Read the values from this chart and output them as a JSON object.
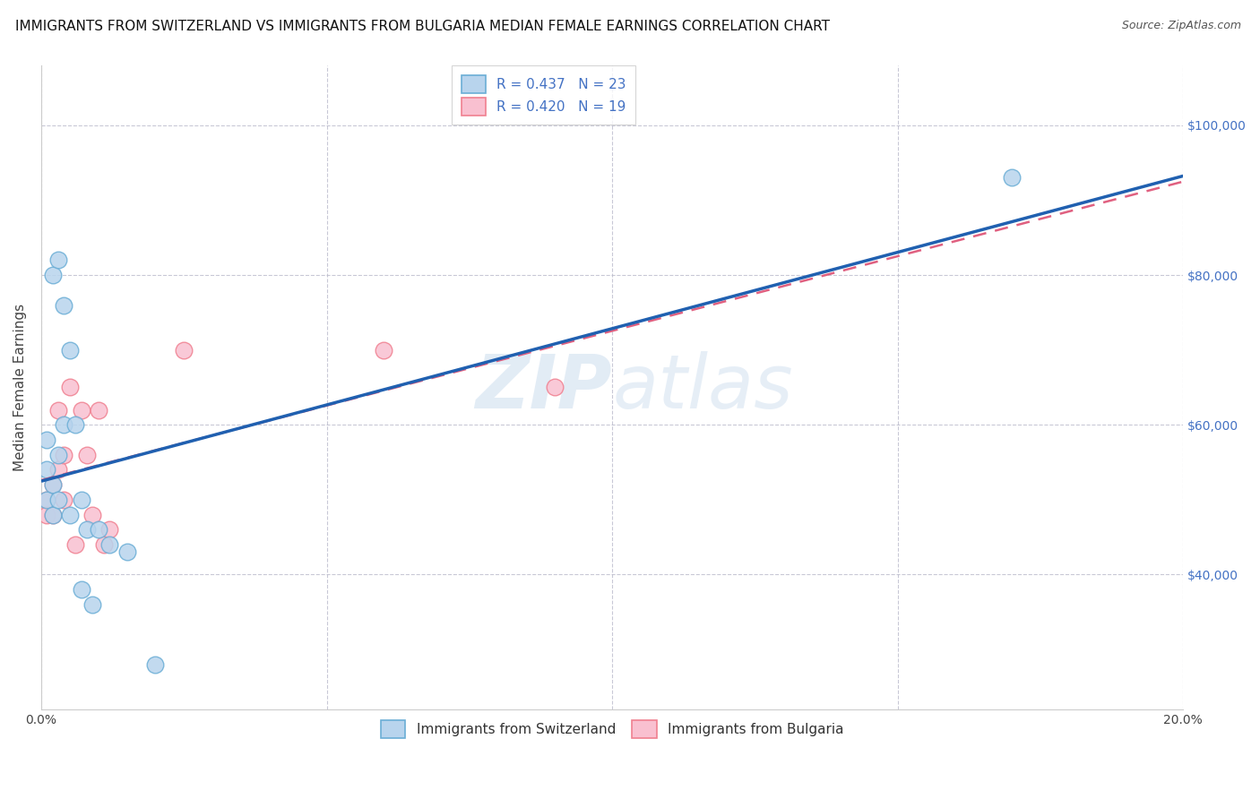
{
  "title": "IMMIGRANTS FROM SWITZERLAND VS IMMIGRANTS FROM BULGARIA MEDIAN FEMALE EARNINGS CORRELATION CHART",
  "source": "Source: ZipAtlas.com",
  "ylabel": "Median Female Earnings",
  "xlim": [
    0.0,
    0.2
  ],
  "ylim": [
    22000,
    108000
  ],
  "x_ticks": [
    0.0,
    0.05,
    0.1,
    0.15,
    0.2
  ],
  "x_tick_labels": [
    "0.0%",
    "",
    "",
    "",
    "20.0%"
  ],
  "y_ticks": [
    40000,
    60000,
    80000,
    100000
  ],
  "y_tick_labels": [
    "$40,000",
    "$60,000",
    "$80,000",
    "$100,000"
  ],
  "watermark": "ZIPatlas",
  "legend_R_sw": "R = 0.437   N = 23",
  "legend_R_bg": "R = 0.420   N = 19",
  "legend_label1": "Immigrants from Switzerland",
  "legend_label2": "Immigrants from Bulgaria",
  "color_switzerland_fill": "#b8d4ed",
  "color_switzerland_edge": "#6baed6",
  "color_bulgaria_fill": "#f9c0d0",
  "color_bulgaria_edge": "#f08090",
  "line_color_switzerland": "#2060b0",
  "line_color_bulgaria": "#e06080",
  "grid_color": "#bbbbcc",
  "background_color": "#ffffff",
  "title_fontsize": 11,
  "axis_label_fontsize": 11,
  "tick_fontsize": 10,
  "marker_size": 180,
  "switzerland_x": [
    0.001,
    0.001,
    0.001,
    0.002,
    0.002,
    0.002,
    0.003,
    0.003,
    0.003,
    0.004,
    0.004,
    0.005,
    0.005,
    0.006,
    0.007,
    0.007,
    0.008,
    0.009,
    0.01,
    0.012,
    0.015,
    0.02,
    0.17
  ],
  "switzerland_y": [
    50000,
    54000,
    58000,
    48000,
    52000,
    80000,
    50000,
    56000,
    82000,
    60000,
    76000,
    48000,
    70000,
    60000,
    38000,
    50000,
    46000,
    36000,
    46000,
    44000,
    43000,
    28000,
    93000
  ],
  "bulgaria_x": [
    0.001,
    0.001,
    0.002,
    0.002,
    0.003,
    0.003,
    0.004,
    0.004,
    0.005,
    0.006,
    0.007,
    0.008,
    0.009,
    0.01,
    0.011,
    0.012,
    0.025,
    0.06,
    0.09
  ],
  "bulgaria_y": [
    50000,
    48000,
    52000,
    48000,
    54000,
    62000,
    56000,
    50000,
    65000,
    44000,
    62000,
    56000,
    48000,
    62000,
    44000,
    46000,
    70000,
    70000,
    65000
  ]
}
